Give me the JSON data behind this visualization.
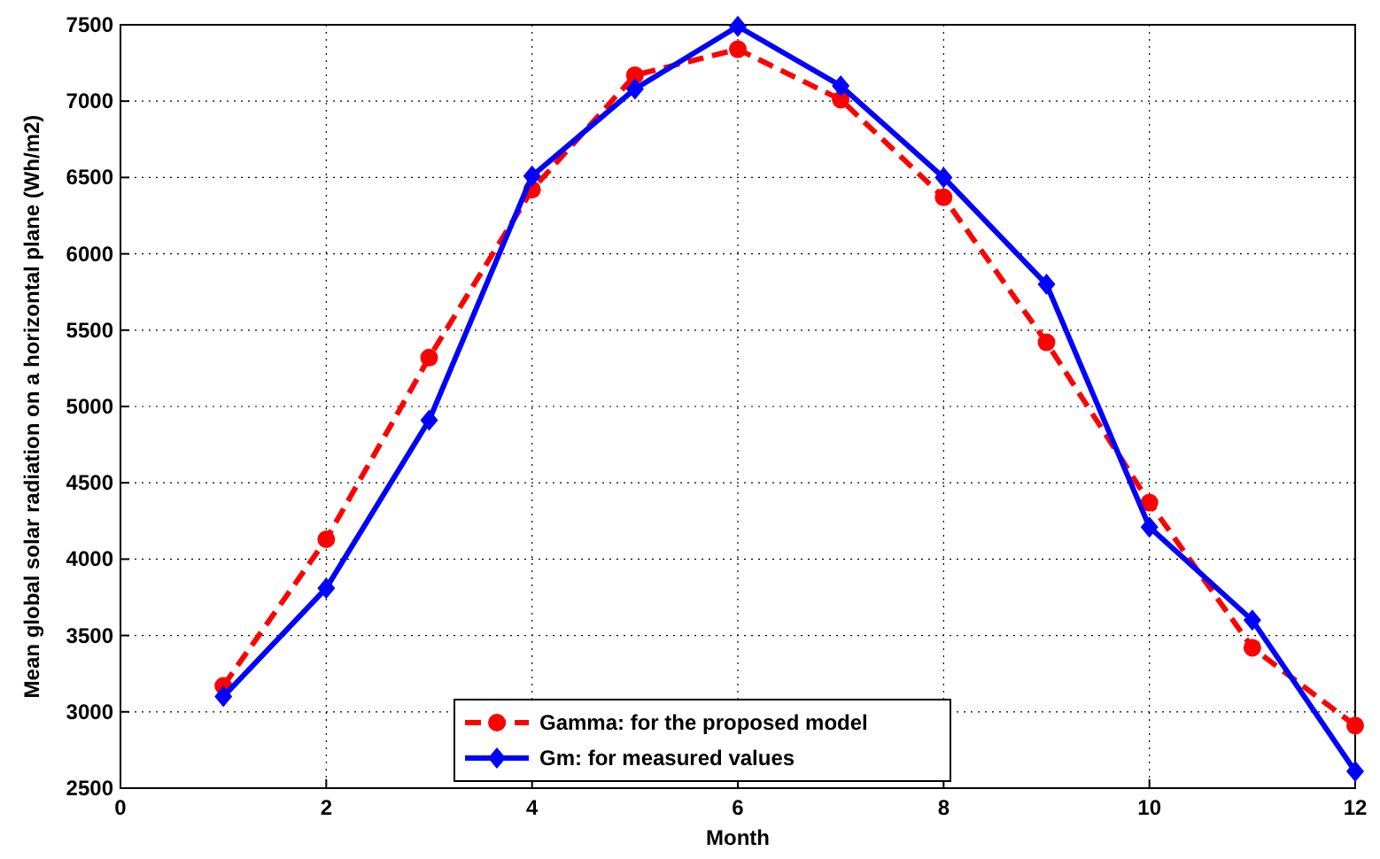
{
  "chart_data": {
    "type": "line",
    "xlabel": "Month",
    "ylabel": "Mean global solar radiation on a horizontal plane (Wh/m2)",
    "x": [
      1,
      2,
      3,
      4,
      5,
      6,
      7,
      8,
      9,
      10,
      11,
      12
    ],
    "series": [
      {
        "name": "Gamma: for the proposed model",
        "color": "#ff0000",
        "marker": "circle",
        "line_style": "dashed",
        "values": [
          3170,
          4130,
          5320,
          6420,
          7170,
          7340,
          7010,
          6370,
          5420,
          4370,
          3420,
          2910
        ]
      },
      {
        "name": "Gm: for measured values",
        "color": "#0000ff",
        "marker": "diamond",
        "line_style": "solid",
        "values": [
          3100,
          3810,
          4910,
          6510,
          7080,
          7490,
          7100,
          6500,
          5800,
          4210,
          3600,
          2610
        ]
      }
    ],
    "xlim": [
      0,
      12
    ],
    "xticks": [
      0,
      2,
      4,
      6,
      8,
      10,
      12
    ],
    "ylim": [
      2500,
      7500
    ],
    "yticks": [
      2500,
      3000,
      3500,
      4000,
      4500,
      5000,
      5500,
      6000,
      6500,
      7000,
      7500
    ],
    "grid": true,
    "legend": "bottom"
  }
}
